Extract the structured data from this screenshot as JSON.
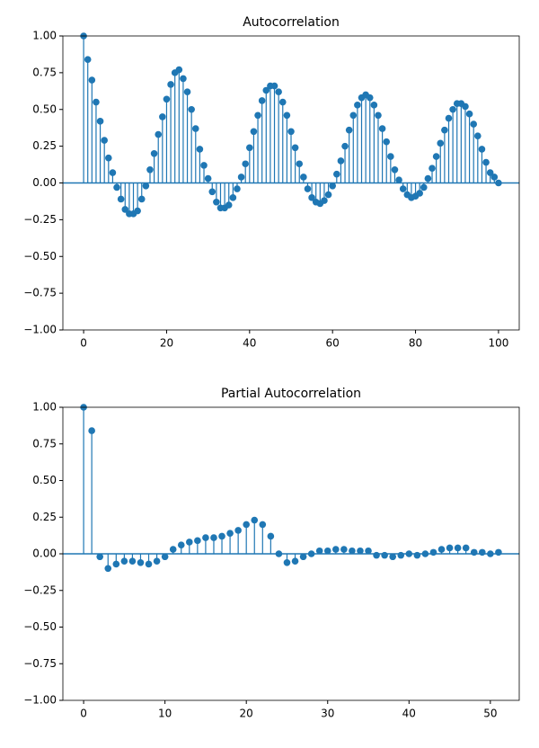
{
  "chart_data": [
    {
      "type": "stem",
      "title": "Autocorrelation",
      "color": "#1f77b4",
      "x": [
        0,
        1,
        2,
        3,
        4,
        5,
        6,
        7,
        8,
        9,
        10,
        11,
        12,
        13,
        14,
        15,
        16,
        17,
        18,
        19,
        20,
        21,
        22,
        23,
        24,
        25,
        26,
        27,
        28,
        29,
        30,
        31,
        32,
        33,
        34,
        35,
        36,
        37,
        38,
        39,
        40,
        41,
        42,
        43,
        44,
        45,
        46,
        47,
        48,
        49,
        50,
        51,
        52,
        53,
        54,
        55,
        56,
        57,
        58,
        59,
        60,
        61,
        62,
        63,
        64,
        65,
        66,
        67,
        68,
        69,
        70,
        71,
        72,
        73,
        74,
        75,
        76,
        77,
        78,
        79,
        80,
        81,
        82,
        83,
        84,
        85,
        86,
        87,
        88,
        89,
        90,
        91,
        92,
        93,
        94,
        95,
        96,
        97,
        98,
        99,
        100
      ],
      "values": [
        1.0,
        0.84,
        0.7,
        0.55,
        0.42,
        0.29,
        0.17,
        0.07,
        -0.03,
        -0.11,
        -0.18,
        -0.21,
        -0.21,
        -0.19,
        -0.11,
        -0.02,
        0.09,
        0.2,
        0.33,
        0.45,
        0.57,
        0.67,
        0.75,
        0.77,
        0.71,
        0.62,
        0.5,
        0.37,
        0.23,
        0.12,
        0.03,
        -0.06,
        -0.13,
        -0.17,
        -0.17,
        -0.15,
        -0.1,
        -0.04,
        0.04,
        0.13,
        0.24,
        0.35,
        0.46,
        0.56,
        0.63,
        0.66,
        0.66,
        0.62,
        0.55,
        0.46,
        0.35,
        0.24,
        0.13,
        0.04,
        -0.04,
        -0.1,
        -0.13,
        -0.14,
        -0.12,
        -0.08,
        -0.02,
        0.06,
        0.15,
        0.25,
        0.36,
        0.46,
        0.53,
        0.58,
        0.6,
        0.58,
        0.53,
        0.46,
        0.37,
        0.28,
        0.18,
        0.09,
        0.02,
        -0.04,
        -0.08,
        -0.1,
        -0.09,
        -0.07,
        -0.03,
        0.03,
        0.1,
        0.18,
        0.27,
        0.36,
        0.44,
        0.5,
        0.54,
        0.54,
        0.52,
        0.47,
        0.4,
        0.32,
        0.23,
        0.14,
        0.07,
        0.04,
        0.0
      ],
      "xlim": [
        -5,
        105
      ],
      "xticks": [
        0,
        20,
        40,
        60,
        80,
        100
      ],
      "ylim": [
        -1,
        1
      ],
      "yticks": [
        {
          "value": -1,
          "label": "−1.00"
        },
        {
          "value": -0.75,
          "label": "−0.75"
        },
        {
          "value": -0.5,
          "label": "−0.50"
        },
        {
          "value": -0.25,
          "label": "−0.25"
        },
        {
          "value": 0,
          "label": "0.00"
        },
        {
          "value": 0.25,
          "label": "0.25"
        },
        {
          "value": 0.5,
          "label": "0.50"
        },
        {
          "value": 0.75,
          "label": "0.75"
        },
        {
          "value": 1,
          "label": "1.00"
        }
      ]
    },
    {
      "type": "stem",
      "title": "Partial Autocorrelation",
      "color": "#1f77b4",
      "x": [
        0,
        1,
        2,
        3,
        4,
        5,
        6,
        7,
        8,
        9,
        10,
        11,
        12,
        13,
        14,
        15,
        16,
        17,
        18,
        19,
        20,
        21,
        22,
        23,
        24,
        25,
        26,
        27,
        28,
        29,
        30,
        31,
        32,
        33,
        34,
        35,
        36,
        37,
        38,
        39,
        40,
        41,
        42,
        43,
        44,
        45,
        46,
        47,
        48,
        49,
        50,
        51
      ],
      "values": [
        1.0,
        0.84,
        -0.02,
        -0.1,
        -0.07,
        -0.05,
        -0.05,
        -0.06,
        -0.07,
        -0.05,
        -0.02,
        0.03,
        0.06,
        0.08,
        0.09,
        0.11,
        0.11,
        0.12,
        0.14,
        0.16,
        0.2,
        0.23,
        0.2,
        0.12,
        0.0,
        -0.06,
        -0.05,
        -0.02,
        0.0,
        0.02,
        0.02,
        0.03,
        0.03,
        0.02,
        0.02,
        0.02,
        -0.01,
        -0.01,
        -0.02,
        -0.01,
        0.0,
        -0.01,
        0.0,
        0.01,
        0.03,
        0.04,
        0.04,
        0.04,
        0.01,
        0.01,
        0.0,
        0.01
      ],
      "xlim": [
        -2.55,
        53.55
      ],
      "xticks": [
        0,
        10,
        20,
        30,
        40,
        50
      ],
      "ylim": [
        -1,
        1
      ],
      "yticks": [
        {
          "value": -1,
          "label": "−1.00"
        },
        {
          "value": -0.75,
          "label": "−0.75"
        },
        {
          "value": -0.5,
          "label": "−0.50"
        },
        {
          "value": -0.25,
          "label": "−0.25"
        },
        {
          "value": 0,
          "label": "0.00"
        },
        {
          "value": 0.25,
          "label": "0.25"
        },
        {
          "value": 0.5,
          "label": "0.50"
        },
        {
          "value": 0.75,
          "label": "0.75"
        },
        {
          "value": 1,
          "label": "1.00"
        }
      ]
    }
  ]
}
